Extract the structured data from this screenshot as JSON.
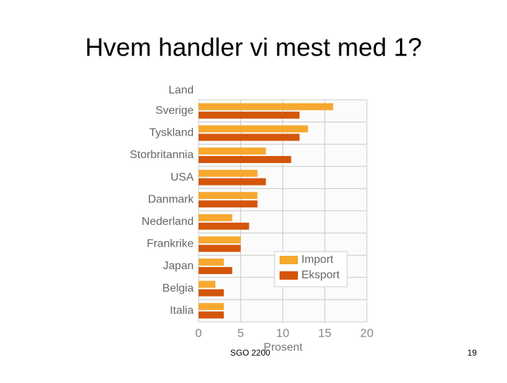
{
  "title": "Hvem handler vi mest med 1?",
  "footer": "SGO 2200",
  "page_number": "19",
  "chart_data": {
    "type": "bar",
    "orientation": "horizontal",
    "category_label": "Land",
    "x_label": "Prosent",
    "categories": [
      "Sverige",
      "Tyskland",
      "Storbritannia",
      "USA",
      "Danmark",
      "Nederland",
      "Frankrike",
      "Japan",
      "Belgia",
      "Italia"
    ],
    "series": [
      {
        "name": "Import",
        "color": "#f7a82f",
        "values": [
          16,
          13,
          8,
          7,
          7,
          4,
          5,
          3,
          2,
          3
        ]
      },
      {
        "name": "Eksport",
        "color": "#d4560a",
        "values": [
          12,
          12,
          11,
          8,
          7,
          6,
          5,
          4,
          3,
          3
        ]
      }
    ],
    "xlim": [
      0,
      20
    ],
    "xticks": [
      0,
      5,
      10,
      15,
      20
    ],
    "grid": true,
    "legend": "lower right"
  }
}
